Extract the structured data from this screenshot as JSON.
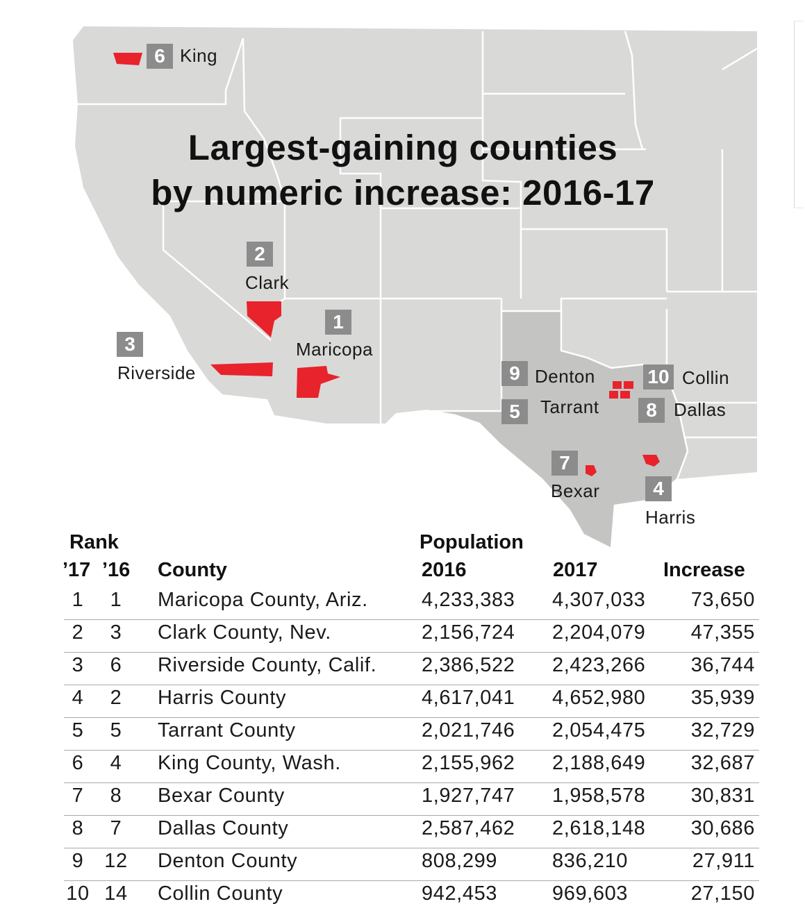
{
  "title": {
    "line1": "Largest-gaining counties",
    "line2": "by numeric increase: 2016-17"
  },
  "colors": {
    "land": "#d9d9d8",
    "texas": "#c4c4c3",
    "borders": "#ffffff",
    "county_highlight": "#e8232b",
    "badge": "#8c8c8c"
  },
  "map_labels": [
    {
      "rank": "1",
      "name": "Maricopa"
    },
    {
      "rank": "2",
      "name": "Clark"
    },
    {
      "rank": "3",
      "name": "Riverside"
    },
    {
      "rank": "4",
      "name": "Harris"
    },
    {
      "rank": "5",
      "name": "Tarrant"
    },
    {
      "rank": "6",
      "name": "King"
    },
    {
      "rank": "7",
      "name": "Bexar"
    },
    {
      "rank": "8",
      "name": "Dallas"
    },
    {
      "rank": "9",
      "name": "Denton"
    },
    {
      "rank": "10",
      "name": "Collin"
    }
  ],
  "table": {
    "header": {
      "rank": "Rank",
      "rank17": "’17",
      "rank16": "’16",
      "county": "County",
      "population": "Population",
      "pop2016": "2016",
      "pop2017": "2017",
      "increase": "Increase"
    },
    "rows": [
      {
        "r17": "1",
        "r16": "1",
        "county": "Maricopa County, Ariz.",
        "p2016": "4,233,383",
        "p2017": "4,307,033",
        "increase": "73,650"
      },
      {
        "r17": "2",
        "r16": "3",
        "county": "Clark County, Nev.",
        "p2016": "2,156,724",
        "p2017": "2,204,079",
        "increase": "47,355"
      },
      {
        "r17": "3",
        "r16": "6",
        "county": "Riverside County, Calif.",
        "p2016": "2,386,522",
        "p2017": "2,423,266",
        "increase": "36,744"
      },
      {
        "r17": "4",
        "r16": "2",
        "county": "Harris County",
        "p2016": "4,617,041",
        "p2017": "4,652,980",
        "increase": "35,939"
      },
      {
        "r17": "5",
        "r16": "5",
        "county": "Tarrant County",
        "p2016": "2,021,746",
        "p2017": "2,054,475",
        "increase": "32,729"
      },
      {
        "r17": "6",
        "r16": "4",
        "county": "King County, Wash.",
        "p2016": "2,155,962",
        "p2017": "2,188,649",
        "increase": "32,687"
      },
      {
        "r17": "7",
        "r16": "8",
        "county": "Bexar County",
        "p2016": "1,927,747",
        "p2017": "1,958,578",
        "increase": "30,831"
      },
      {
        "r17": "8",
        "r16": "7",
        "county": "Dallas County",
        "p2016": "2,587,462",
        "p2017": "2,618,148",
        "increase": "30,686"
      },
      {
        "r17": "9",
        "r16": "12",
        "county": "Denton County",
        "p2016": "808,299",
        "p2017": "836,210",
        "increase": "27,911"
      },
      {
        "r17": "10",
        "r16": "14",
        "county": "Collin County",
        "p2016": "942,453",
        "p2017": "969,603",
        "increase": "27,150"
      }
    ]
  }
}
